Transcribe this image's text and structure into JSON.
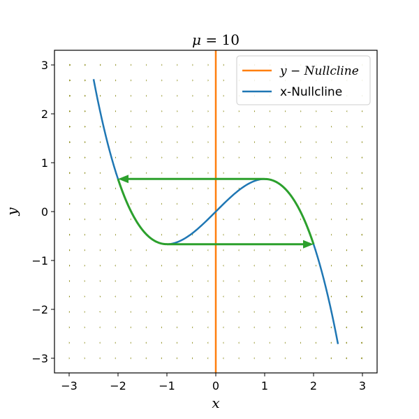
{
  "chart_data": {
    "type": "line",
    "title": "μ = 10",
    "xlabel": "x",
    "ylabel": "y",
    "xlim": [
      -3.3,
      3.3
    ],
    "ylim": [
      -3.3,
      3.3
    ],
    "xticks": [
      -3,
      -2,
      -1,
      0,
      1,
      2,
      3
    ],
    "yticks": [
      -3,
      -2,
      -1,
      0,
      1,
      2,
      3
    ],
    "xtick_labels": [
      "−3",
      "−2",
      "−1",
      "0",
      "1",
      "2",
      "3"
    ],
    "ytick_labels": [
      "−3",
      "−2",
      "−1",
      "0",
      "1",
      "2",
      "3"
    ],
    "grid": false,
    "legend_position": "top-right",
    "mu": 10,
    "series": [
      {
        "name": "y − Nullcline",
        "color": "#ff7f0e",
        "kind": "vertical-line",
        "x": [
          0,
          0
        ],
        "y": [
          -3.3,
          3.3
        ]
      },
      {
        "name": "x-Nullcline",
        "color": "#1f77b4",
        "kind": "cubic",
        "formula": "y = x - x^3/3",
        "x_range": [
          -2.5,
          2.5
        ]
      }
    ],
    "limit_cycle": {
      "color": "#2ca02c",
      "segments": [
        {
          "kind": "curve",
          "x_range": [
            -2,
            -1
          ]
        },
        {
          "kind": "arrow",
          "from": [
            -1,
            -0.667
          ],
          "to": [
            2,
            -0.667
          ]
        },
        {
          "kind": "curve",
          "x_range": [
            1,
            2
          ]
        },
        {
          "kind": "arrow",
          "from": [
            1,
            0.667
          ],
          "to": [
            -2,
            0.667
          ]
        }
      ]
    },
    "vector_field": {
      "color": "#808000",
      "x_range": [
        -3,
        3
      ],
      "y_range": [
        -3,
        3
      ],
      "nx": 20,
      "ny": 20
    }
  }
}
